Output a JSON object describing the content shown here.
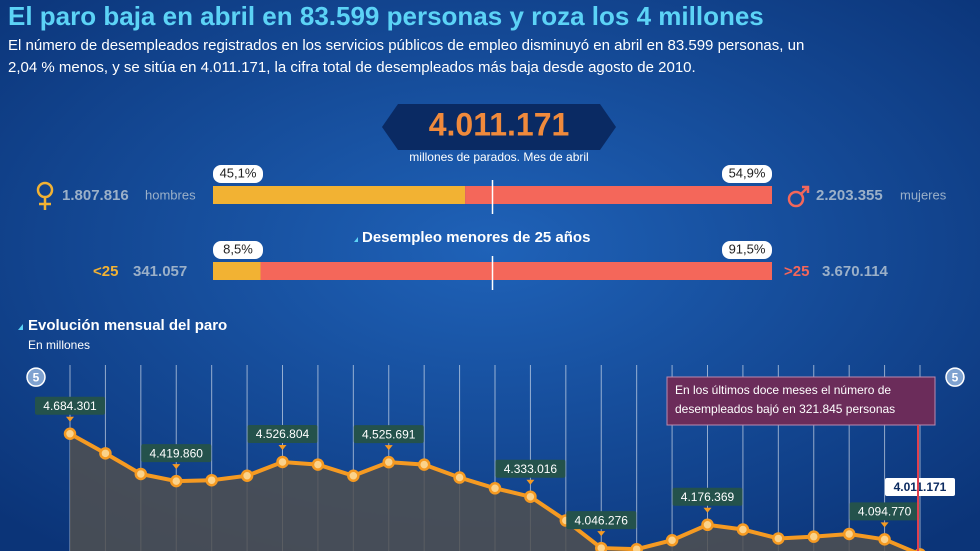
{
  "header": {
    "title": "El paro baja en abril en 83.599 personas y roza los 4 millones",
    "subtitle_lines": [
      "El número de desempleados registrados en los servicios públicos de empleo disminuyó en abril en 83.599 personas, un",
      "2,04 % menos, y se sitúa en 4.011.171, la cifra total de desempleados más baja desde agosto de 2010."
    ]
  },
  "headline": {
    "number": "4.011.171",
    "caption": "millones de parados. Mes de abril"
  },
  "gender": {
    "left": {
      "percent": 45.1,
      "percent_label": "45,1%",
      "count": "1.807.816",
      "label": "hombres",
      "color": "#f2b233"
    },
    "right": {
      "percent": 54.9,
      "percent_label": "54,9%",
      "count": "2.203.355",
      "label": "mujeres",
      "color": "#f4675a"
    }
  },
  "age": {
    "title": "Desempleo menores de 25 años",
    "left": {
      "percent": 8.5,
      "percent_label": "8,5%",
      "group": "<25",
      "count": "341.057",
      "color": "#f2b233"
    },
    "right": {
      "percent": 91.5,
      "percent_label": "91,5%",
      "group": ">25",
      "count": "3.670.114",
      "color": "#f4675a"
    }
  },
  "chart_data": {
    "type": "area",
    "title": "Evolución mensual del paro",
    "y_label": "En millones",
    "categories": [
      null,
      null,
      null,
      null,
      null,
      null,
      null,
      null,
      null,
      null,
      null,
      null,
      null,
      null,
      null,
      null,
      null,
      null,
      null,
      null,
      null,
      null,
      null,
      null,
      null
    ],
    "series": [
      {
        "color": "#f59a22",
        "values": [
          4.684301,
          4.575,
          4.46,
          4.41986,
          4.425,
          4.45,
          4.526804,
          4.512,
          4.45,
          4.525691,
          4.512,
          4.44,
          4.38,
          4.333016,
          4.2,
          4.046276,
          4.04,
          4.09,
          4.176369,
          4.15,
          4.1,
          4.11,
          4.125,
          4.09477,
          4.011171
        ],
        "value_labels": [
          "4.684.301",
          null,
          null,
          "4.419.860",
          null,
          null,
          "4.526.804",
          null,
          null,
          "4.525.691",
          null,
          null,
          null,
          "4.333.016",
          null,
          "4.046.276",
          null,
          null,
          "4.176.369",
          null,
          null,
          null,
          null,
          "4.094.770",
          "4.011.171"
        ]
      }
    ],
    "ylim": [
      4.03,
      5.04
    ],
    "yticks": [
      {
        "value": 5,
        "label": "5"
      }
    ],
    "annotation": [
      "En los últimos doce meses el número de",
      "desempleados bajó en 321.845 personas"
    ]
  }
}
